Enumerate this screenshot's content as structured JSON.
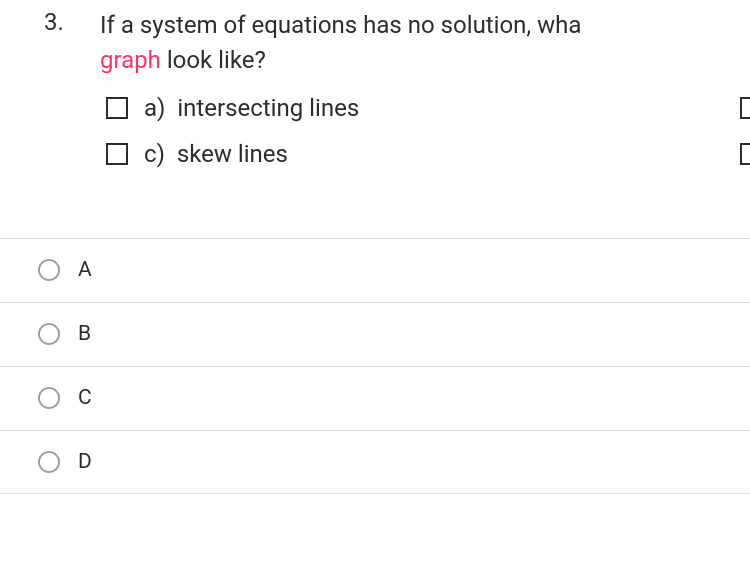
{
  "question": {
    "number": "3.",
    "text_part1": "If a system of equations has no solution, wha",
    "highlight_word": "graph",
    "text_part2": " look like?"
  },
  "options": {
    "a": {
      "letter": "a)",
      "text": "intersecting lines"
    },
    "c": {
      "letter": "c)",
      "text": "skew lines"
    }
  },
  "answers": [
    {
      "label": "A"
    },
    {
      "label": "B"
    },
    {
      "label": "C"
    },
    {
      "label": "D"
    }
  ],
  "colors": {
    "highlight": "#ff3366",
    "text": "#2c2c2c",
    "border": "#e0e0e0",
    "radio": "#9e9e9e",
    "background": "#ffffff"
  }
}
